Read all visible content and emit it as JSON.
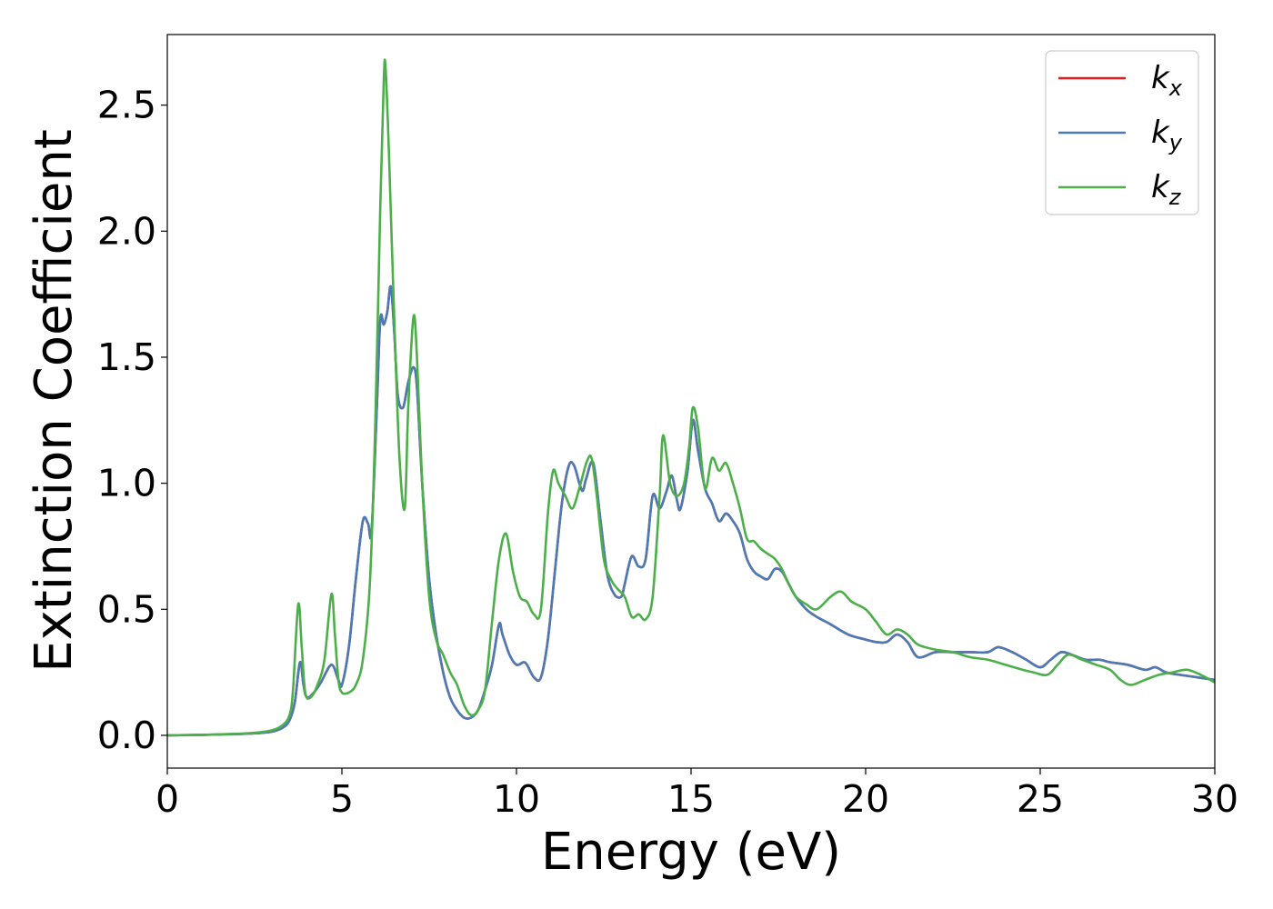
{
  "chart_data": {
    "type": "line",
    "xlabel": "Energy (eV)",
    "ylabel": "Extinction Coefficient",
    "xlim": [
      0,
      30
    ],
    "ylim": [
      -0.13,
      2.78
    ],
    "xticks": [
      0,
      5,
      10,
      15,
      20,
      25,
      30
    ],
    "yticks": [
      0.0,
      0.5,
      1.0,
      1.5,
      2.0,
      2.5
    ],
    "xtick_labels": [
      "0",
      "5",
      "10",
      "15",
      "20",
      "25",
      "30"
    ],
    "ytick_labels": [
      "0.0",
      "0.5",
      "1.0",
      "1.5",
      "2.0",
      "2.5"
    ],
    "grid": false,
    "legend_position": "top-right",
    "series": [
      {
        "name": "k",
        "subscript": "x",
        "color": "#e41a1c",
        "x": [
          0,
          1,
          2,
          2.5,
          3,
          3.3,
          3.5,
          3.65,
          3.8,
          3.9,
          4.0,
          4.2,
          4.4,
          4.7,
          4.9,
          5.0,
          5.2,
          5.4,
          5.6,
          5.75,
          5.85,
          6.0,
          6.1,
          6.2,
          6.3,
          6.4,
          6.5,
          6.6,
          6.75,
          6.9,
          7.05,
          7.15,
          7.3,
          7.5,
          7.7,
          7.9,
          8.1,
          8.3,
          8.5,
          8.7,
          8.9,
          9.1,
          9.3,
          9.5,
          9.6,
          9.8,
          10.0,
          10.2,
          10.3,
          10.5,
          10.7,
          10.9,
          11.1,
          11.3,
          11.5,
          11.65,
          11.8,
          11.9,
          12.0,
          12.2,
          12.4,
          12.6,
          12.8,
          13.0,
          13.1,
          13.3,
          13.5,
          13.7,
          13.9,
          14.1,
          14.3,
          14.45,
          14.6,
          14.7,
          14.9,
          15.05,
          15.2,
          15.4,
          15.6,
          15.8,
          16.0,
          16.2,
          16.4,
          16.6,
          16.8,
          17.0,
          17.2,
          17.4,
          17.6,
          17.8,
          18.0,
          18.3,
          18.6,
          19.0,
          19.5,
          20.0,
          20.3,
          20.6,
          20.9,
          21.2,
          21.5,
          22.0,
          22.5,
          23.0,
          23.5,
          23.8,
          24.2,
          24.6,
          25.0,
          25.3,
          25.6,
          25.9,
          26.3,
          26.7,
          27.0,
          27.5,
          28.0,
          28.3,
          28.6,
          29.0,
          29.5,
          30.0
        ],
        "values": [
          0.0,
          0.002,
          0.005,
          0.008,
          0.015,
          0.03,
          0.06,
          0.13,
          0.29,
          0.2,
          0.15,
          0.17,
          0.21,
          0.28,
          0.22,
          0.2,
          0.35,
          0.62,
          0.85,
          0.84,
          0.81,
          1.3,
          1.65,
          1.63,
          1.68,
          1.78,
          1.6,
          1.35,
          1.3,
          1.4,
          1.46,
          1.38,
          1.0,
          0.62,
          0.4,
          0.25,
          0.15,
          0.1,
          0.07,
          0.07,
          0.1,
          0.18,
          0.28,
          0.44,
          0.4,
          0.32,
          0.28,
          0.29,
          0.28,
          0.23,
          0.23,
          0.38,
          0.65,
          0.92,
          1.07,
          1.07,
          1.0,
          0.97,
          1.02,
          1.08,
          0.86,
          0.64,
          0.56,
          0.55,
          0.6,
          0.71,
          0.67,
          0.7,
          0.95,
          0.9,
          0.97,
          1.03,
          0.93,
          0.9,
          1.05,
          1.25,
          1.13,
          0.98,
          0.92,
          0.85,
          0.88,
          0.85,
          0.8,
          0.7,
          0.65,
          0.63,
          0.62,
          0.66,
          0.65,
          0.6,
          0.55,
          0.5,
          0.47,
          0.44,
          0.4,
          0.38,
          0.37,
          0.37,
          0.4,
          0.37,
          0.31,
          0.33,
          0.33,
          0.33,
          0.33,
          0.35,
          0.33,
          0.3,
          0.27,
          0.3,
          0.33,
          0.32,
          0.3,
          0.3,
          0.29,
          0.28,
          0.26,
          0.27,
          0.25,
          0.24,
          0.23,
          0.22
        ]
      },
      {
        "name": "k",
        "subscript": "y",
        "color": "#4a7bb7",
        "x": [
          0,
          1,
          2,
          2.5,
          3,
          3.3,
          3.5,
          3.65,
          3.8,
          3.9,
          4.0,
          4.2,
          4.4,
          4.7,
          4.9,
          5.0,
          5.2,
          5.4,
          5.6,
          5.75,
          5.85,
          6.0,
          6.1,
          6.2,
          6.3,
          6.4,
          6.5,
          6.6,
          6.75,
          6.9,
          7.05,
          7.15,
          7.3,
          7.5,
          7.7,
          7.9,
          8.1,
          8.3,
          8.5,
          8.7,
          8.9,
          9.1,
          9.3,
          9.5,
          9.6,
          9.8,
          10.0,
          10.2,
          10.3,
          10.5,
          10.7,
          10.9,
          11.1,
          11.3,
          11.5,
          11.65,
          11.8,
          11.9,
          12.0,
          12.2,
          12.4,
          12.6,
          12.8,
          13.0,
          13.1,
          13.3,
          13.5,
          13.7,
          13.9,
          14.1,
          14.3,
          14.45,
          14.6,
          14.7,
          14.9,
          15.05,
          15.2,
          15.4,
          15.6,
          15.8,
          16.0,
          16.2,
          16.4,
          16.6,
          16.8,
          17.0,
          17.2,
          17.4,
          17.6,
          17.8,
          18.0,
          18.3,
          18.6,
          19.0,
          19.5,
          20.0,
          20.3,
          20.6,
          20.9,
          21.2,
          21.5,
          22.0,
          22.5,
          23.0,
          23.5,
          23.8,
          24.2,
          24.6,
          25.0,
          25.3,
          25.6,
          25.9,
          26.3,
          26.7,
          27.0,
          27.5,
          28.0,
          28.3,
          28.6,
          29.0,
          29.5,
          30.0
        ],
        "values": [
          0.0,
          0.002,
          0.005,
          0.008,
          0.015,
          0.03,
          0.06,
          0.13,
          0.29,
          0.2,
          0.15,
          0.17,
          0.21,
          0.28,
          0.22,
          0.2,
          0.35,
          0.62,
          0.85,
          0.84,
          0.81,
          1.3,
          1.65,
          1.63,
          1.68,
          1.78,
          1.6,
          1.35,
          1.3,
          1.4,
          1.46,
          1.38,
          1.0,
          0.62,
          0.4,
          0.25,
          0.15,
          0.1,
          0.07,
          0.07,
          0.1,
          0.18,
          0.28,
          0.44,
          0.4,
          0.32,
          0.28,
          0.29,
          0.28,
          0.23,
          0.23,
          0.38,
          0.65,
          0.92,
          1.07,
          1.07,
          1.0,
          0.97,
          1.02,
          1.08,
          0.86,
          0.64,
          0.56,
          0.55,
          0.6,
          0.71,
          0.67,
          0.7,
          0.95,
          0.9,
          0.97,
          1.03,
          0.93,
          0.9,
          1.05,
          1.25,
          1.13,
          0.98,
          0.92,
          0.85,
          0.88,
          0.85,
          0.8,
          0.7,
          0.65,
          0.63,
          0.62,
          0.66,
          0.65,
          0.6,
          0.55,
          0.5,
          0.47,
          0.44,
          0.4,
          0.38,
          0.37,
          0.37,
          0.4,
          0.37,
          0.31,
          0.33,
          0.33,
          0.33,
          0.33,
          0.35,
          0.33,
          0.3,
          0.27,
          0.3,
          0.33,
          0.32,
          0.3,
          0.3,
          0.29,
          0.28,
          0.26,
          0.27,
          0.25,
          0.24,
          0.23,
          0.22
        ]
      },
      {
        "name": "k",
        "subscript": "z",
        "color": "#4daf4a",
        "x": [
          0,
          1,
          2,
          2.5,
          3,
          3.3,
          3.5,
          3.6,
          3.75,
          3.85,
          3.95,
          4.1,
          4.3,
          4.5,
          4.7,
          4.8,
          4.9,
          5.0,
          5.2,
          5.4,
          5.6,
          5.8,
          5.95,
          6.1,
          6.2,
          6.25,
          6.35,
          6.5,
          6.65,
          6.8,
          6.9,
          7.05,
          7.15,
          7.3,
          7.5,
          7.7,
          7.9,
          8.1,
          8.3,
          8.5,
          8.7,
          8.9,
          9.1,
          9.3,
          9.5,
          9.7,
          9.9,
          10.1,
          10.3,
          10.5,
          10.7,
          10.9,
          11.05,
          11.2,
          11.4,
          11.6,
          11.8,
          12.0,
          12.15,
          12.3,
          12.5,
          12.7,
          12.9,
          13.1,
          13.3,
          13.5,
          13.7,
          13.9,
          14.1,
          14.2,
          14.4,
          14.6,
          14.8,
          14.95,
          15.05,
          15.2,
          15.4,
          15.6,
          15.8,
          16.0,
          16.2,
          16.4,
          16.6,
          16.8,
          17.0,
          17.2,
          17.4,
          17.6,
          17.8,
          18.0,
          18.3,
          18.6,
          19.0,
          19.3,
          19.6,
          20.0,
          20.3,
          20.6,
          20.9,
          21.2,
          21.5,
          22.0,
          22.5,
          23.0,
          23.5,
          24.0,
          24.5,
          24.8,
          25.2,
          25.5,
          25.8,
          26.2,
          26.6,
          27.0,
          27.3,
          27.6,
          28.0,
          28.4,
          28.8,
          29.2,
          29.6,
          30.0
        ],
        "values": [
          0.0,
          0.002,
          0.006,
          0.01,
          0.02,
          0.04,
          0.08,
          0.18,
          0.52,
          0.35,
          0.17,
          0.15,
          0.2,
          0.3,
          0.56,
          0.4,
          0.22,
          0.17,
          0.17,
          0.2,
          0.3,
          0.6,
          1.2,
          2.1,
          2.6,
          2.65,
          2.3,
          1.65,
          1.1,
          0.9,
          1.3,
          1.66,
          1.5,
          1.0,
          0.55,
          0.38,
          0.32,
          0.25,
          0.2,
          0.12,
          0.08,
          0.1,
          0.18,
          0.45,
          0.7,
          0.8,
          0.65,
          0.55,
          0.53,
          0.48,
          0.5,
          0.88,
          1.05,
          1.0,
          0.95,
          0.9,
          0.98,
          1.08,
          1.1,
          0.95,
          0.7,
          0.62,
          0.58,
          0.55,
          0.47,
          0.48,
          0.46,
          0.55,
          0.95,
          1.19,
          1.0,
          0.95,
          1.0,
          1.15,
          1.3,
          1.22,
          0.98,
          1.1,
          1.05,
          1.08,
          1.0,
          0.9,
          0.78,
          0.77,
          0.74,
          0.72,
          0.7,
          0.66,
          0.6,
          0.55,
          0.52,
          0.5,
          0.55,
          0.57,
          0.53,
          0.5,
          0.45,
          0.4,
          0.42,
          0.4,
          0.36,
          0.34,
          0.33,
          0.31,
          0.3,
          0.28,
          0.26,
          0.25,
          0.24,
          0.28,
          0.32,
          0.3,
          0.28,
          0.26,
          0.22,
          0.2,
          0.22,
          0.24,
          0.25,
          0.26,
          0.24,
          0.21
        ]
      }
    ]
  }
}
